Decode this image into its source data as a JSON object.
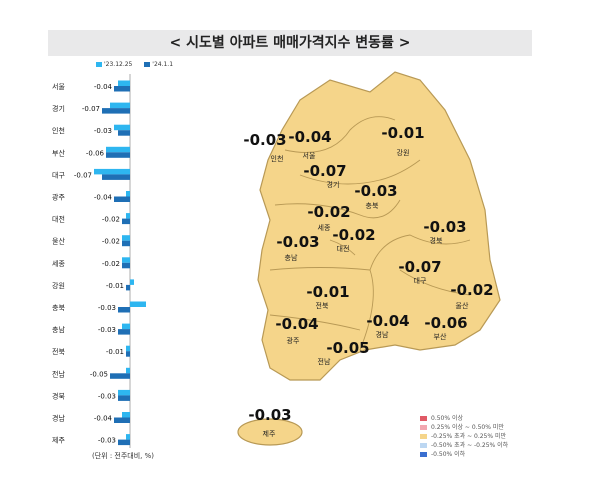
{
  "title": "< 시도별 아파트 매매가격지수 변동률 >",
  "unit_note": "(단위 : 전주대비, %)",
  "colors": {
    "series_prev": "#2eb6f0",
    "series_curr": "#1f6fb5",
    "map_fill": "#f5d58a",
    "map_stroke": "#b89955",
    "title_bg": "#e9e9ea"
  },
  "chart_data": {
    "type": "bar",
    "orientation": "horizontal",
    "categories": [
      "서울",
      "경기",
      "인천",
      "부산",
      "대구",
      "광주",
      "대전",
      "울산",
      "세종",
      "강원",
      "충북",
      "충남",
      "전북",
      "전남",
      "경북",
      "경남",
      "제주"
    ],
    "series": [
      {
        "name": "'23.12.25",
        "values": [
          -0.03,
          -0.05,
          -0.04,
          -0.06,
          -0.09,
          -0.01,
          -0.01,
          -0.02,
          -0.02,
          0.01,
          0.04,
          -0.02,
          -0.01,
          -0.01,
          -0.03,
          -0.02,
          -0.01
        ]
      },
      {
        "name": "'24.1.1",
        "values": [
          -0.04,
          -0.07,
          -0.03,
          -0.06,
          -0.07,
          -0.04,
          -0.02,
          -0.02,
          -0.02,
          -0.01,
          -0.03,
          -0.03,
          -0.01,
          -0.05,
          -0.03,
          -0.04,
          -0.03
        ]
      }
    ],
    "data_labels": [
      "-0.04",
      "-0.07",
      "-0.03",
      "-0.06",
      "-0.07",
      "-0.04",
      "-0.02",
      "-0.02",
      "-0.02",
      "-0.01",
      "-0.03",
      "-0.03",
      "-0.01",
      "-0.05",
      "-0.03",
      "-0.04",
      "-0.03"
    ],
    "xlim": [
      -0.12,
      0.06
    ],
    "grid": false,
    "legend": "top"
  },
  "map_labels": [
    {
      "region": "인천",
      "value": "-0.03"
    },
    {
      "region": "서울",
      "value": "-0.04"
    },
    {
      "region": "강원",
      "value": "-0.01"
    },
    {
      "region": "경기",
      "value": "-0.07"
    },
    {
      "region": "충북",
      "value": "-0.03"
    },
    {
      "region": "세종",
      "value": "-0.02"
    },
    {
      "region": "대전",
      "value": "-0.02"
    },
    {
      "region": "충남",
      "value": "-0.03"
    },
    {
      "region": "경북",
      "value": "-0.03"
    },
    {
      "region": "대구",
      "value": "-0.07"
    },
    {
      "region": "울산",
      "value": "-0.02"
    },
    {
      "region": "전북",
      "value": "-0.01"
    },
    {
      "region": "광주",
      "value": "-0.04"
    },
    {
      "region": "경남",
      "value": "-0.04"
    },
    {
      "region": "부산",
      "value": "-0.06"
    },
    {
      "region": "전남",
      "value": "-0.05"
    },
    {
      "region": "제주",
      "value": "-0.03"
    }
  ],
  "map_legend": [
    {
      "label": "0.50% 이상",
      "color": "#e05a66"
    },
    {
      "label": "0.25% 이상 ~ 0.50% 미만",
      "color": "#f2a7b0"
    },
    {
      "label": "-0.25% 초과 ~ 0.25% 미만",
      "color": "#f5d58a"
    },
    {
      "label": "-0.50% 초과 ~ -0.25% 이하",
      "color": "#bcd7f2"
    },
    {
      "label": "-0.50% 이하",
      "color": "#3a6fd0"
    }
  ]
}
